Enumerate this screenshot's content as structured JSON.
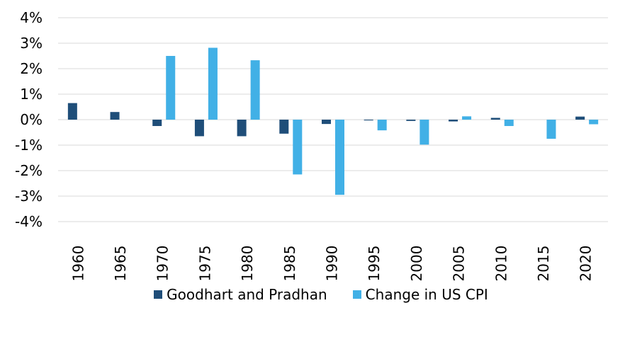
{
  "chart_data": {
    "type": "bar",
    "categories": [
      "1960",
      "1965",
      "1970",
      "1975",
      "1980",
      "1985",
      "1990",
      "1995",
      "2000",
      "2005",
      "2010",
      "2015",
      "2020"
    ],
    "series": [
      {
        "name": "Goodhart and Pradhan",
        "color": "#1f4e79",
        "values": [
          0.65,
          0.3,
          -0.25,
          -0.65,
          -0.65,
          -0.55,
          -0.17,
          -0.03,
          -0.05,
          -0.07,
          0.07,
          0.0,
          0.12
        ]
      },
      {
        "name": "Change in US CPI",
        "color": "#41b0e6",
        "values": [
          0.0,
          0.0,
          2.5,
          2.82,
          2.33,
          -2.15,
          -2.95,
          -0.42,
          -0.98,
          0.13,
          -0.25,
          -0.75,
          -0.18
        ]
      }
    ],
    "y_ticks": [
      "4%",
      "3%",
      "2%",
      "1%",
      "0%",
      "-1%",
      "-2%",
      "-3%",
      "-4%"
    ],
    "ylim": [
      -4,
      4
    ],
    "title": "",
    "xlabel": "",
    "ylabel": "",
    "grid": true,
    "legend_position": "bottom"
  }
}
